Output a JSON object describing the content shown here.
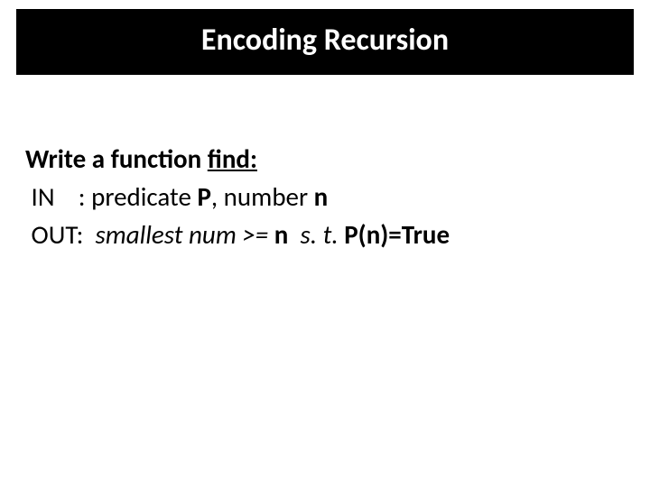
{
  "slide": {
    "title": "Encoding Recursion",
    "line1_prefix": "Write a function ",
    "line1_fn": "find:",
    "line2_label": " IN    : ",
    "line2_text1": "predicate ",
    "line2_P": "P",
    "line2_text2": ", number ",
    "line2_n": "n",
    "line3_label": " OUT:  ",
    "line3_text1": "smallest num >= ",
    "line3_n": "n",
    "line3_text2": "  s. t. ",
    "line3_eq": "P(n)=True"
  },
  "style": {
    "title_bg": "#000000",
    "title_color": "#ffffff",
    "title_fontsize": 34,
    "body_fontsize": 29,
    "body_color": "#000000",
    "background": "#ffffff"
  }
}
